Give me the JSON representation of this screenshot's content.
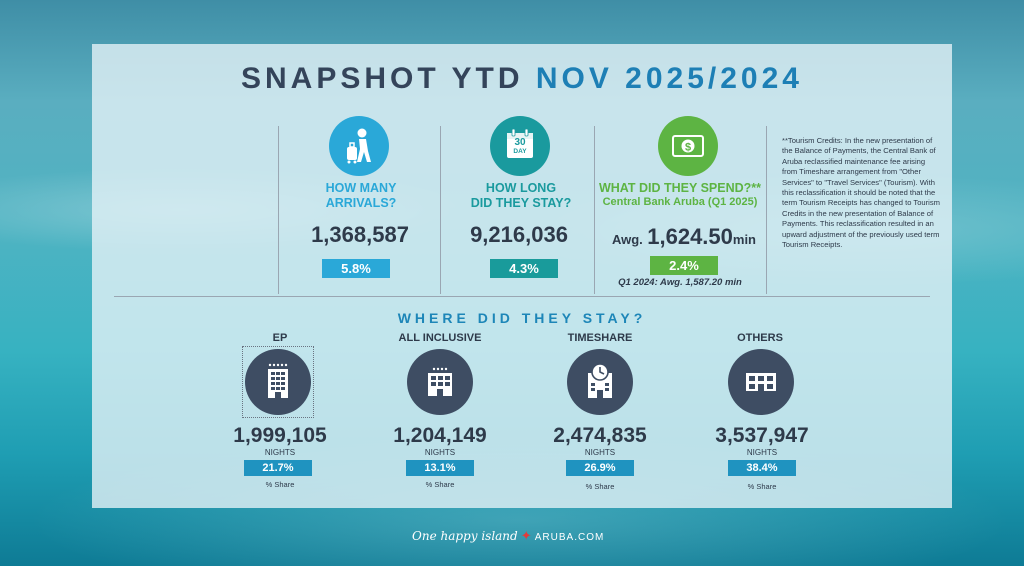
{
  "title": {
    "main": "SNAPSHOT YTD",
    "accent": "NOV 2025/2024"
  },
  "arrivals": {
    "icon": "traveler-icon",
    "question_line1": "HOW MANY",
    "question_line2": "ARRIVALS?",
    "value": "1,368,587",
    "change": "5.8%",
    "color": "#2aa8d8",
    "badge_color": "#2aa8d8"
  },
  "stay": {
    "icon": "calendar-icon",
    "calendar_day": "30",
    "calendar_unit": "DAY",
    "question_line1": "HOW LONG",
    "question_line2": "DID THEY STAY?",
    "value": "9,216,036",
    "change": "4.3%",
    "color": "#1a9a9e",
    "badge_color": "#199b9b"
  },
  "spend": {
    "icon": "money-icon",
    "question": "WHAT DID THEY SPEND?**",
    "source": "Central Bank Aruba (Q1 2025)",
    "avg_prefix": "Awg.",
    "value": "1,624.50",
    "unit": "min",
    "change": "2.4%",
    "prior": "Q1 2024: Awg. 1,587.20 min",
    "color": "#5db443",
    "badge_color": "#5db443"
  },
  "footnote": "**Tourism Credits: In the new presentation of the Balance of Payments, the Central Bank of Aruba reclassified maintenance fee arising from Timeshare arrangement from \"Other Services\" to \"Travel Services\" (Tourism). With this reclassification it should be noted that the term Tourism Receipts has changed to Tourism Credits in the new presentation of Balance of Payments. This reclassification resulted in an upward adjustment of the previously used term Tourism Receipts.",
  "where_title": "WHERE DID THEY STAY?",
  "accommodations": [
    {
      "label": "EP",
      "icon": "hotel-icon",
      "value": "1,999,105",
      "unit": "NIGHTS",
      "share": "21.7%",
      "share_label": "% Share"
    },
    {
      "label": "ALL INCLUSIVE",
      "icon": "hotel-icon",
      "value": "1,204,149",
      "unit": "NIGHTS",
      "share": "13.1%",
      "share_label": "% Share"
    },
    {
      "label": "TIMESHARE",
      "icon": "clock-building-icon",
      "value": "2,474,835",
      "unit": "NIGHTS",
      "share": "26.9%",
      "share_label": "% Share"
    },
    {
      "label": "OTHERS",
      "icon": "building-icon",
      "value": "3,537,947",
      "unit": "NIGHTS",
      "share": "38.4%",
      "share_label": "% Share"
    }
  ],
  "footer": {
    "tagline": "One happy island",
    "brand": "ARUBA.COM"
  }
}
